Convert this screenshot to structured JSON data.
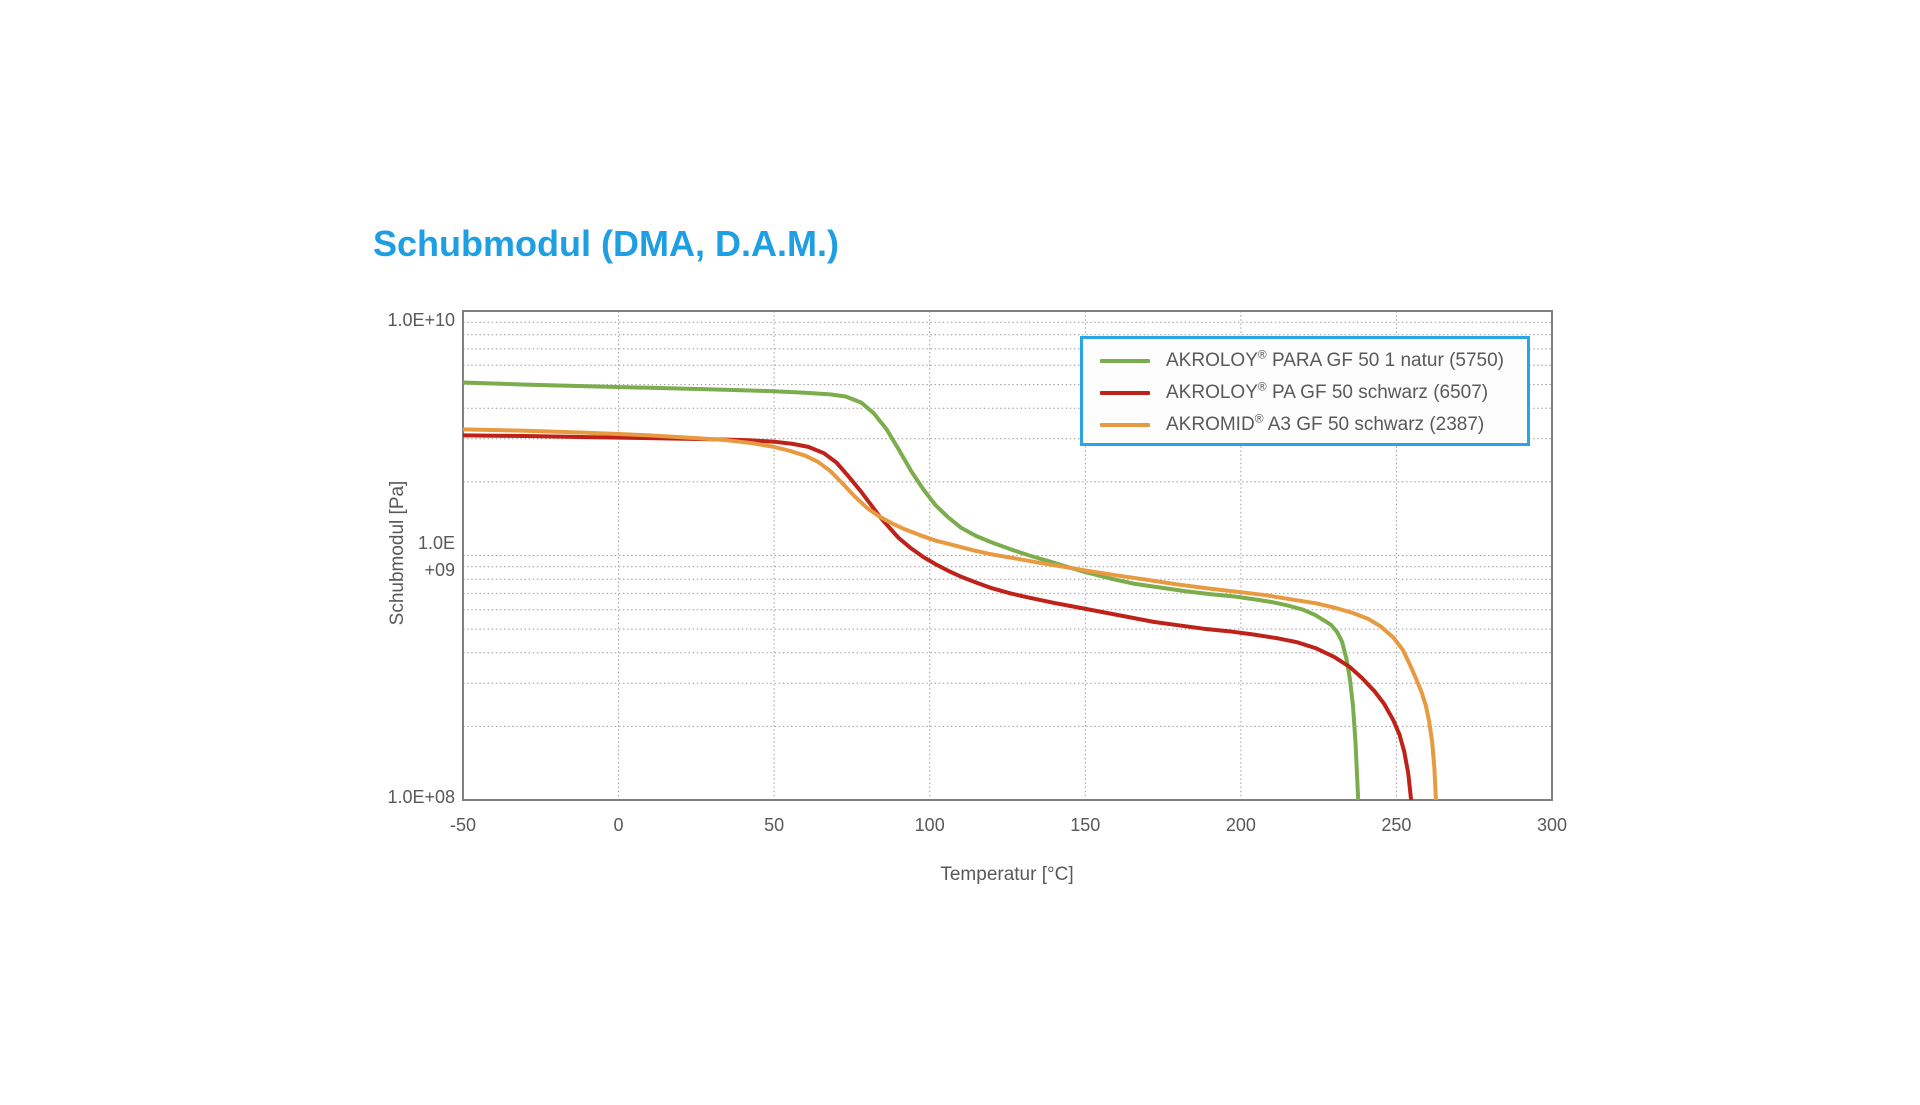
{
  "page": {
    "background_color": "#ffffff"
  },
  "title": {
    "text": "Schubmodul (DMA, D.A.M.)",
    "color": "#1e9ee3"
  },
  "legend": {
    "border_color": "#29a6e2",
    "items": [
      {
        "brand": "AKROLOY",
        "reg": "®",
        "rest": " PARA GF 50 1 natur (5750)"
      },
      {
        "brand": "AKROLOY",
        "reg": "®",
        "rest": " PA GF 50 schwarz (6507)"
      },
      {
        "brand": "AKROMID",
        "reg": "®",
        "rest": " A3 GF 50 schwarz (2387)"
      }
    ]
  },
  "chart_data": {
    "type": "line",
    "title": "Schubmodul (DMA, D.A.M.)",
    "xlabel": "Temperatur [°C]",
    "ylabel": "Schubmodul [Pa]",
    "xlim": [
      -50,
      300
    ],
    "ylim": [
      100000000.0,
      10000000000.0
    ],
    "y_scale": "log",
    "grid": "dotted gray; vertical lines every 50 °C, horizontal log minor lines each decade",
    "legend_position": "top-right inside plot",
    "x_axis": {
      "min": -50,
      "max": 300,
      "ticks": [
        -50,
        0,
        50,
        100,
        150,
        200,
        250,
        300
      ],
      "tick_labels": [
        "-50",
        "0",
        "50",
        "100",
        "150",
        "200",
        "250",
        "300"
      ]
    },
    "y_axis": {
      "scale": "log",
      "min": 100000000.0,
      "max": 10000000000.0,
      "tick_labels": [
        "1.0E+10",
        "1.0E",
        "+09",
        "1.0E+08"
      ]
    },
    "series": [
      {
        "name": "AKROLOY® PARA GF 50 1 natur (5750)",
        "color": "#7bad4d",
        "points": [
          [
            -50,
            5100000000.0
          ],
          [
            -30,
            5000000000.0
          ],
          [
            -10,
            4920000000.0
          ],
          [
            10,
            4850000000.0
          ],
          [
            30,
            4780000000.0
          ],
          [
            50,
            4700000000.0
          ],
          [
            60,
            4630000000.0
          ],
          [
            68,
            4560000000.0
          ],
          [
            73,
            4470000000.0
          ],
          [
            78,
            4220000000.0
          ],
          [
            82,
            3820000000.0
          ],
          [
            86,
            3300000000.0
          ],
          [
            90,
            2720000000.0
          ],
          [
            94,
            2220000000.0
          ],
          [
            98,
            1860000000.0
          ],
          [
            102,
            1600000000.0
          ],
          [
            106,
            1430000000.0
          ],
          [
            110,
            1300000000.0
          ],
          [
            115,
            1200000000.0
          ],
          [
            120,
            1130000000.0
          ],
          [
            126,
            1060000000.0
          ],
          [
            132,
            1000000000.0
          ],
          [
            138,
            950000000.0
          ],
          [
            144,
            900000000.0
          ],
          [
            150,
            855000000.0
          ],
          [
            158,
            805000000.0
          ],
          [
            166,
            765000000.0
          ],
          [
            174,
            740000000.0
          ],
          [
            182,
            715000000.0
          ],
          [
            190,
            695000000.0
          ],
          [
            198,
            680000000.0
          ],
          [
            205,
            660000000.0
          ],
          [
            210,
            645000000.0
          ],
          [
            215,
            625000000.0
          ],
          [
            220,
            600000000.0
          ],
          [
            224,
            570000000.0
          ],
          [
            227,
            540000000.0
          ],
          [
            229,
            520000000.0
          ],
          [
            231,
            485000000.0
          ],
          [
            232.5,
            445000000.0
          ],
          [
            234,
            375000000.0
          ],
          [
            235,
            315000000.0
          ],
          [
            236,
            245000000.0
          ],
          [
            236.8,
            175000000.0
          ],
          [
            237.3,
            130000000.0
          ],
          [
            237.7,
            100000000.0
          ]
        ]
      },
      {
        "name": "AKROLOY® PA GF 50 schwarz (6507)",
        "color": "#bf2219",
        "points": [
          [
            -50,
            3100000000.0
          ],
          [
            -30,
            3080000000.0
          ],
          [
            -10,
            3050000000.0
          ],
          [
            10,
            3020000000.0
          ],
          [
            30,
            2990000000.0
          ],
          [
            42,
            2960000000.0
          ],
          [
            50,
            2920000000.0
          ],
          [
            56,
            2860000000.0
          ],
          [
            61,
            2780000000.0
          ],
          [
            66,
            2620000000.0
          ],
          [
            70,
            2400000000.0
          ],
          [
            74,
            2100000000.0
          ],
          [
            78,
            1820000000.0
          ],
          [
            81,
            1620000000.0
          ],
          [
            84,
            1440000000.0
          ],
          [
            87,
            1300000000.0
          ],
          [
            90,
            1180000000.0
          ],
          [
            94,
            1070000000.0
          ],
          [
            98,
            985000000.0
          ],
          [
            102,
            920000000.0
          ],
          [
            106,
            865000000.0
          ],
          [
            110,
            820000000.0
          ],
          [
            115,
            775000000.0
          ],
          [
            120,
            735000000.0
          ],
          [
            126,
            700000000.0
          ],
          [
            132,
            672000000.0
          ],
          [
            140,
            640000000.0
          ],
          [
            148,
            612000000.0
          ],
          [
            156,
            585000000.0
          ],
          [
            164,
            560000000.0
          ],
          [
            172,
            535000000.0
          ],
          [
            180,
            518000000.0
          ],
          [
            188,
            502000000.0
          ],
          [
            196,
            490000000.0
          ],
          [
            204,
            475000000.0
          ],
          [
            212,
            458000000.0
          ],
          [
            218,
            442000000.0
          ],
          [
            224,
            418000000.0
          ],
          [
            230,
            385000000.0
          ],
          [
            235,
            350000000.0
          ],
          [
            239,
            315000000.0
          ],
          [
            243,
            278000000.0
          ],
          [
            246,
            248000000.0
          ],
          [
            249,
            212000000.0
          ],
          [
            251,
            185000000.0
          ],
          [
            252.5,
            158000000.0
          ],
          [
            253.8,
            128000000.0
          ],
          [
            254.7,
            100000000.0
          ]
        ]
      },
      {
        "name": "AKROMID® A3 GF 50 schwarz (2387)",
        "color": "#e89a40",
        "points": [
          [
            -50,
            3280000000.0
          ],
          [
            -30,
            3240000000.0
          ],
          [
            -10,
            3180000000.0
          ],
          [
            10,
            3100000000.0
          ],
          [
            25,
            3020000000.0
          ],
          [
            35,
            2960000000.0
          ],
          [
            43,
            2880000000.0
          ],
          [
            50,
            2780000000.0
          ],
          [
            55,
            2680000000.0
          ],
          [
            60,
            2560000000.0
          ],
          [
            64,
            2420000000.0
          ],
          [
            68,
            2220000000.0
          ],
          [
            72,
            1970000000.0
          ],
          [
            76,
            1740000000.0
          ],
          [
            80,
            1560000000.0
          ],
          [
            84,
            1440000000.0
          ],
          [
            88,
            1350000000.0
          ],
          [
            92,
            1280000000.0
          ],
          [
            97,
            1210000000.0
          ],
          [
            102,
            1150000000.0
          ],
          [
            108,
            1100000000.0
          ],
          [
            114,
            1050000000.0
          ],
          [
            120,
            1010000000.0
          ],
          [
            128,
            970000000.0
          ],
          [
            136,
            930000000.0
          ],
          [
            144,
            895000000.0
          ],
          [
            152,
            860000000.0
          ],
          [
            160,
            830000000.0
          ],
          [
            170,
            795000000.0
          ],
          [
            180,
            760000000.0
          ],
          [
            190,
            732000000.0
          ],
          [
            200,
            708000000.0
          ],
          [
            208,
            688000000.0
          ],
          [
            216,
            662000000.0
          ],
          [
            224,
            638000000.0
          ],
          [
            230,
            612000000.0
          ],
          [
            236,
            582000000.0
          ],
          [
            241,
            550000000.0
          ],
          [
            245,
            512000000.0
          ],
          [
            249,
            462000000.0
          ],
          [
            252,
            412000000.0
          ],
          [
            254,
            365000000.0
          ],
          [
            256,
            320000000.0
          ],
          [
            258,
            278000000.0
          ],
          [
            259.5,
            242000000.0
          ],
          [
            260.5,
            210000000.0
          ],
          [
            261.5,
            172000000.0
          ],
          [
            262.2,
            135000000.0
          ],
          [
            262.7,
            100000000.0
          ]
        ]
      }
    ]
  }
}
